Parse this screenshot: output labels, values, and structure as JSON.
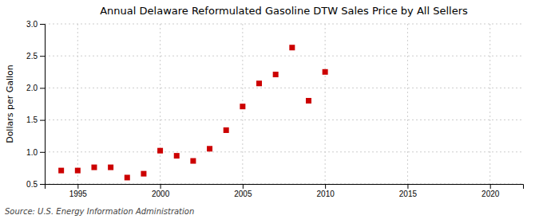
{
  "chart_data": {
    "type": "scatter",
    "title": "Annual Delaware Reformulated Gasoline DTW Sales Price by All Sellers",
    "y_label": "Dollars per Gallon",
    "annotations": [
      "Source: U.S. Energy Information Administration"
    ],
    "color": "#cc0000",
    "marker": "square",
    "grid": true,
    "xlim": [
      1993,
      2022
    ],
    "ylim": [
      0.5,
      3.0
    ],
    "xticks": [
      1995,
      2000,
      2005,
      2010,
      2015,
      2020
    ],
    "yticks": [
      0.5,
      {
        "value": 1.0,
        "label": "1.0"
      },
      1.5,
      {
        "value": 2.0,
        "label": "2.0"
      },
      2.5,
      {
        "value": 3.0,
        "label": "3.0"
      }
    ],
    "x": [
      1994,
      1995,
      1996,
      1997,
      1998,
      1999,
      2000,
      2001,
      2002,
      2003,
      2004,
      2005,
      2006,
      2007,
      2008,
      2009,
      2010
    ],
    "values": [
      0.71,
      0.71,
      0.76,
      0.76,
      0.6,
      0.66,
      1.02,
      0.94,
      0.86,
      1.05,
      1.34,
      1.71,
      2.07,
      2.21,
      2.63,
      1.8,
      2.25
    ]
  }
}
